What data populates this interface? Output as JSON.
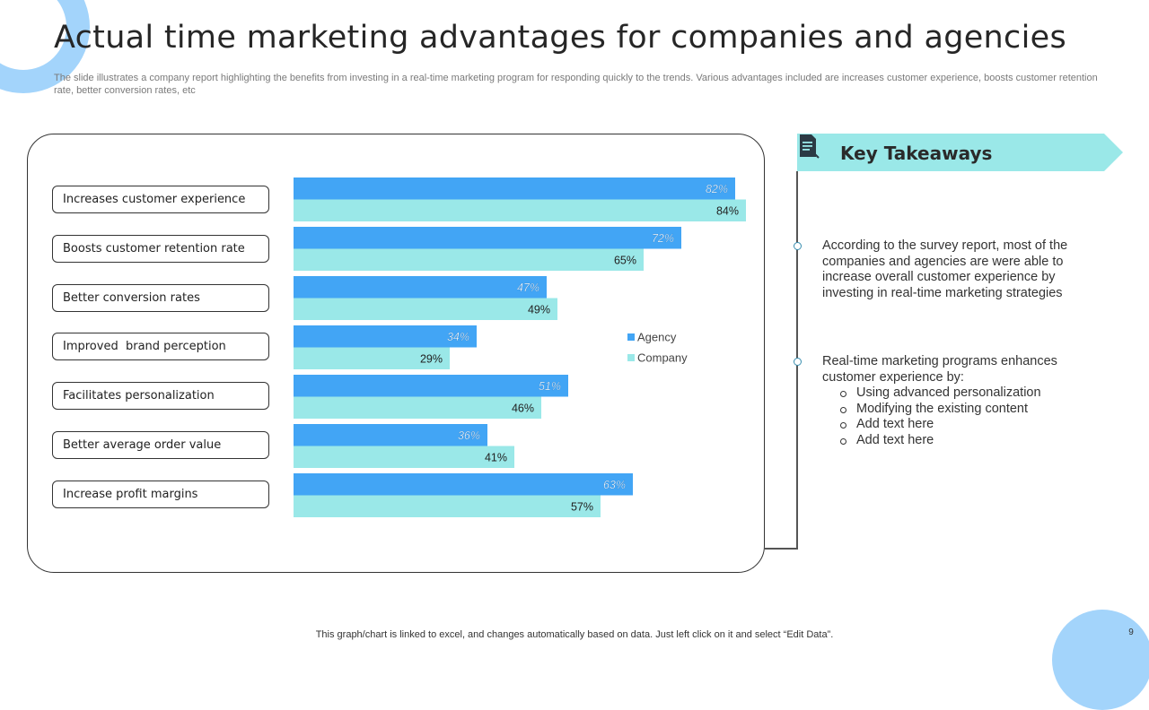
{
  "slide": {
    "title": "Actual time marketing advantages for companies and agencies",
    "subtitle": "The slide illustrates a company report highlighting the benefits from investing in a real-time marketing program for responding quickly to the trends. Various advantages included are increases customer experience, boosts customer retention rate, better conversion rates, etc",
    "footer": "This graph/chart is linked to excel,  and changes automatically based on data. Just left click on it and select “Edit Data”.",
    "page_number": "9"
  },
  "chart_data": {
    "type": "bar",
    "orientation": "horizontal",
    "categories": [
      "Increases customer experience",
      "Boosts customer retention rate",
      "Better conversion rates",
      "Improved  brand perception",
      "Facilitates personalization",
      "Better average order value",
      "Increase profit margins"
    ],
    "series": [
      {
        "name": "Agency",
        "values": [
          82,
          72,
          47,
          34,
          51,
          36,
          63
        ],
        "labels": [
          "82%",
          "72%",
          "47%",
          "34%",
          "51%",
          "36%",
          "63%"
        ],
        "color": "#42a5f5"
      },
      {
        "name": "Company",
        "values": [
          84,
          65,
          49,
          29,
          46,
          41,
          57
        ],
        "labels": [
          "84%",
          "65%",
          "49%",
          "29%",
          "46%",
          "41%",
          "57%"
        ],
        "color": "#9ae8e8"
      }
    ],
    "xlim": [
      0,
      100
    ],
    "grid": false,
    "legend": "right"
  },
  "takeaways": {
    "title": "Key Takeaways",
    "header_color": "#9ae8e8",
    "icon": "document-icon",
    "point1": "According to the survey report, most of the companies and agencies are were able to increase overall customer experience by investing in real-time marketing strategies",
    "point2_intro": "Real-time marketing programs enhances customer experience by:",
    "point2_items": [
      "Using advanced personalization",
      "Modifying the existing content",
      "Add text here",
      "Add text here"
    ]
  }
}
